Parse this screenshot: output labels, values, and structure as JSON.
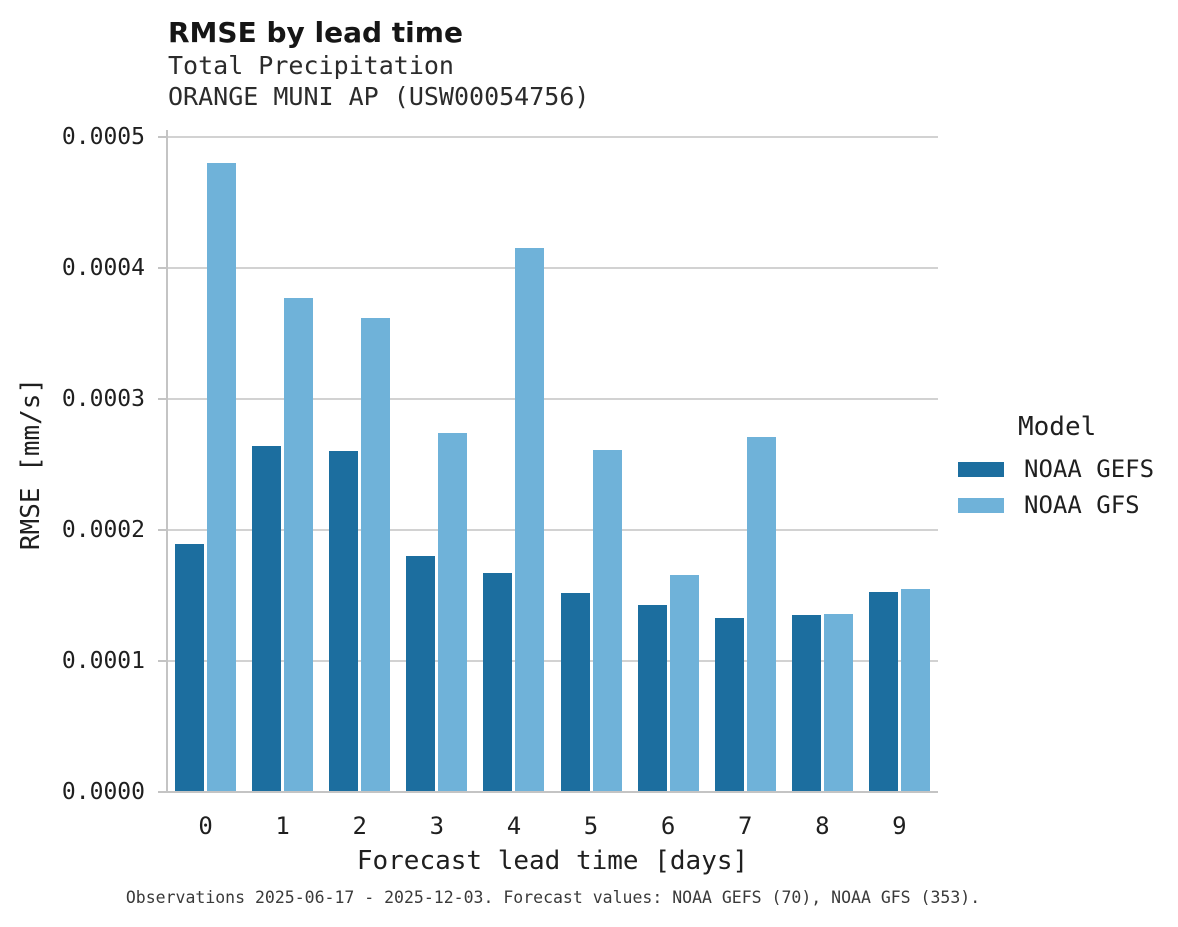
{
  "header": {
    "title": "RMSE by lead time",
    "subtitle": "Total Precipitation",
    "station": "ORANGE MUNI AP (USW00054756)"
  },
  "caption": "Observations 2025-06-17 - 2025-12-03. Forecast values: NOAA GEFS (70), NOAA GFS (353).",
  "legend": {
    "title": "Model",
    "items": [
      {
        "label": "NOAA GEFS",
        "color": "#1c6e9f"
      },
      {
        "label": "NOAA GFS",
        "color": "#6fb2d9"
      }
    ]
  },
  "chart_data": {
    "type": "bar",
    "title": "RMSE by lead time",
    "subtitle": [
      "Total Precipitation",
      "ORANGE MUNI AP (USW00054756)"
    ],
    "xlabel": "Forecast lead time [days]",
    "ylabel": "RMSE [mm/s]",
    "categories": [
      "0",
      "1",
      "2",
      "3",
      "4",
      "5",
      "6",
      "7",
      "8",
      "9"
    ],
    "series": [
      {
        "name": "NOAA GEFS",
        "color": "#1c6e9f",
        "values": [
          0.000189,
          0.000264,
          0.00026,
          0.00018,
          0.000167,
          0.000152,
          0.000143,
          0.000133,
          0.000135,
          0.000153
        ]
      },
      {
        "name": "NOAA GFS",
        "color": "#6fb2d9",
        "values": [
          0.00048,
          0.000377,
          0.000362,
          0.000274,
          0.000415,
          0.000261,
          0.000166,
          0.000271,
          0.000136,
          0.000155
        ]
      }
    ],
    "ylim": [
      0,
      0.0005
    ],
    "yticks": [
      0,
      0.0001,
      0.0002,
      0.0003,
      0.0004,
      0.0005
    ],
    "ytick_labels": [
      "0.0000",
      "0.0001",
      "0.0002",
      "0.0003",
      "0.0004",
      "0.0005"
    ],
    "grid": true,
    "legend_position": "right",
    "legend_title": "Model"
  }
}
